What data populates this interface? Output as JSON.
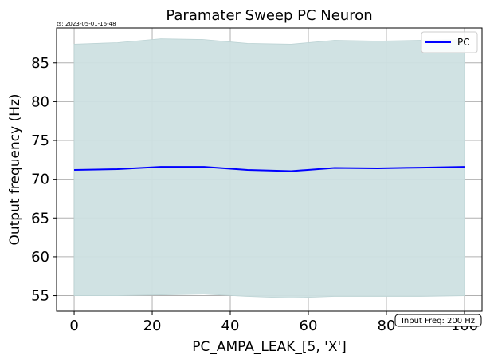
{
  "timestamp": "ts: 2023-05-01-16-48",
  "annotation": "Input Freq: 200 Hz",
  "chart_data": {
    "type": "line",
    "title": "Paramater Sweep PC Neuron",
    "xlabel": "PC_AMPA_LEAK_[5, 'X']",
    "ylabel": "Output frequency (Hz)",
    "xlim": [
      -4.5,
      104.5
    ],
    "ylim": [
      53,
      89.5
    ],
    "xticks": [
      0,
      20,
      40,
      60,
      80,
      100
    ],
    "yticks": [
      55,
      60,
      65,
      70,
      75,
      80,
      85
    ],
    "grid": true,
    "legend": {
      "position": "top-right",
      "entries": [
        "PC"
      ]
    },
    "series": [
      {
        "name": "PC",
        "color": "#0000ff",
        "x": [
          0,
          11.1,
          22.2,
          33.3,
          44.4,
          55.6,
          66.7,
          77.8,
          88.9,
          100
        ],
        "y": [
          71.2,
          71.3,
          71.6,
          71.6,
          71.2,
          71.05,
          71.45,
          71.4,
          71.5,
          71.6
        ],
        "band_upper": [
          87.4,
          87.6,
          88.1,
          88.0,
          87.5,
          87.4,
          87.9,
          87.8,
          87.9,
          88.0
        ],
        "band_lower": [
          55.0,
          55.0,
          55.1,
          55.2,
          54.9,
          54.7,
          54.9,
          54.9,
          54.9,
          55.0
        ],
        "band_color": "#cde0e1"
      }
    ]
  }
}
